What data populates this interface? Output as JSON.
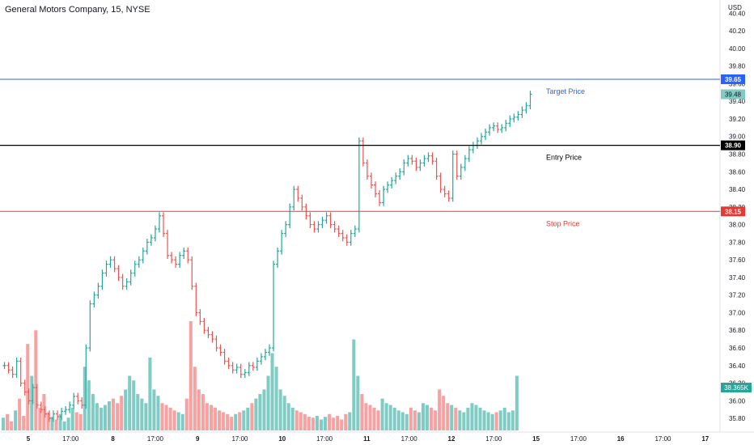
{
  "header": {
    "title": "General Motors Company, 15, NYSE"
  },
  "colors": {
    "up": "#26a69a",
    "down": "#ef5350",
    "vol_up": "#80cbc4",
    "vol_down": "#f7a1a1",
    "target": "#2962ff",
    "entry": "#000000",
    "stop": "#e53935",
    "axis_text": "#131722",
    "last_badge": "#80cbc4"
  },
  "chart_data": {
    "type": "line",
    "title": "General Motors Company, 15, NYSE",
    "currency_label": "USD",
    "y_ticks": [
      "40.40",
      "40.20",
      "40.00",
      "39.80",
      "39.60",
      "39.40",
      "39.20",
      "39.00",
      "38.80",
      "38.60",
      "38.40",
      "38.20",
      "38.00",
      "37.80",
      "37.60",
      "37.40",
      "37.20",
      "37.00",
      "36.80",
      "36.60",
      "36.40",
      "36.20",
      "36.00",
      "35.80"
    ],
    "ylim": [
      35.7,
      40.55
    ],
    "x_ticks": [
      "5",
      "17:00",
      "8",
      "17:00",
      "9",
      "17:00",
      "10",
      "17:00",
      "11",
      "17:00",
      "12",
      "17:00",
      "15",
      "17:00",
      "16",
      "17:00",
      "17"
    ],
    "levels": [
      {
        "name": "Target Price",
        "value": 39.65,
        "label": "Target Price",
        "badge": "39.65",
        "role": "target"
      },
      {
        "name": "Entry Price",
        "value": 38.9,
        "label": "Entry Price",
        "badge": "38.90",
        "role": "entry"
      },
      {
        "name": "Stop Price",
        "value": 38.15,
        "label": "Stop Price",
        "badge": "38.15",
        "role": "stop"
      }
    ],
    "last_price": {
      "value": 39.48,
      "badge": "39.48"
    },
    "volume_label": {
      "value": "38.365K"
    },
    "price_path": [
      36.4,
      36.35,
      36.3,
      36.45,
      36.2,
      36.1,
      36.0,
      36.15,
      35.95,
      35.9,
      35.85,
      35.8,
      35.85,
      35.82,
      35.88,
      35.9,
      35.95,
      36.05,
      36.0,
      35.95,
      36.6,
      37.1,
      37.2,
      37.3,
      37.45,
      37.55,
      37.6,
      37.5,
      37.4,
      37.3,
      37.35,
      37.45,
      37.55,
      37.6,
      37.7,
      37.8,
      37.85,
      37.95,
      38.1,
      37.9,
      37.65,
      37.6,
      37.55,
      37.65,
      37.7,
      37.6,
      37.3,
      37.0,
      36.9,
      36.8,
      36.75,
      36.7,
      36.6,
      36.55,
      36.45,
      36.4,
      36.35,
      36.38,
      36.3,
      36.32,
      36.4,
      36.38,
      36.45,
      36.5,
      36.55,
      36.6,
      37.55,
      37.7,
      37.9,
      38.0,
      38.2,
      38.4,
      38.3,
      38.2,
      38.1,
      38.0,
      37.95,
      38.0,
      38.05,
      38.1,
      38.0,
      37.95,
      37.9,
      37.85,
      37.8,
      37.9,
      37.95,
      38.95,
      38.7,
      38.55,
      38.45,
      38.35,
      38.25,
      38.4,
      38.45,
      38.5,
      38.55,
      38.6,
      38.7,
      38.75,
      38.72,
      38.65,
      38.7,
      38.75,
      38.78,
      38.72,
      38.55,
      38.4,
      38.35,
      38.3,
      38.8,
      38.55,
      38.65,
      38.75,
      38.85,
      38.9,
      38.95,
      39.0,
      39.05,
      39.1,
      39.12,
      39.08,
      39.1,
      39.15,
      39.2,
      39.22,
      39.25,
      39.3,
      39.35,
      39.48
    ],
    "volume_path": [
      14,
      18,
      10,
      22,
      35,
      16,
      95,
      60,
      110,
      25,
      40,
      20,
      15,
      12,
      18,
      10,
      14,
      25,
      20,
      18,
      70,
      55,
      40,
      30,
      25,
      28,
      32,
      35,
      30,
      38,
      45,
      60,
      55,
      40,
      35,
      30,
      80,
      45,
      38,
      30,
      28,
      25,
      22,
      20,
      18,
      35,
      120,
      70,
      45,
      40,
      30,
      28,
      25,
      22,
      20,
      18,
      15,
      18,
      20,
      22,
      25,
      30,
      35,
      40,
      45,
      60,
      85,
      70,
      45,
      38,
      30,
      25,
      22,
      20,
      18,
      15,
      14,
      16,
      12,
      15,
      18,
      14,
      16,
      12,
      18,
      20,
      100,
      60,
      40,
      30,
      28,
      25,
      22,
      35,
      30,
      28,
      25,
      22,
      20,
      18,
      25,
      22,
      20,
      30,
      28,
      25,
      22,
      45,
      38,
      30,
      28,
      25,
      22,
      20,
      25,
      30,
      28,
      25,
      22,
      20,
      18,
      20,
      22,
      25,
      20,
      22,
      60
    ]
  }
}
